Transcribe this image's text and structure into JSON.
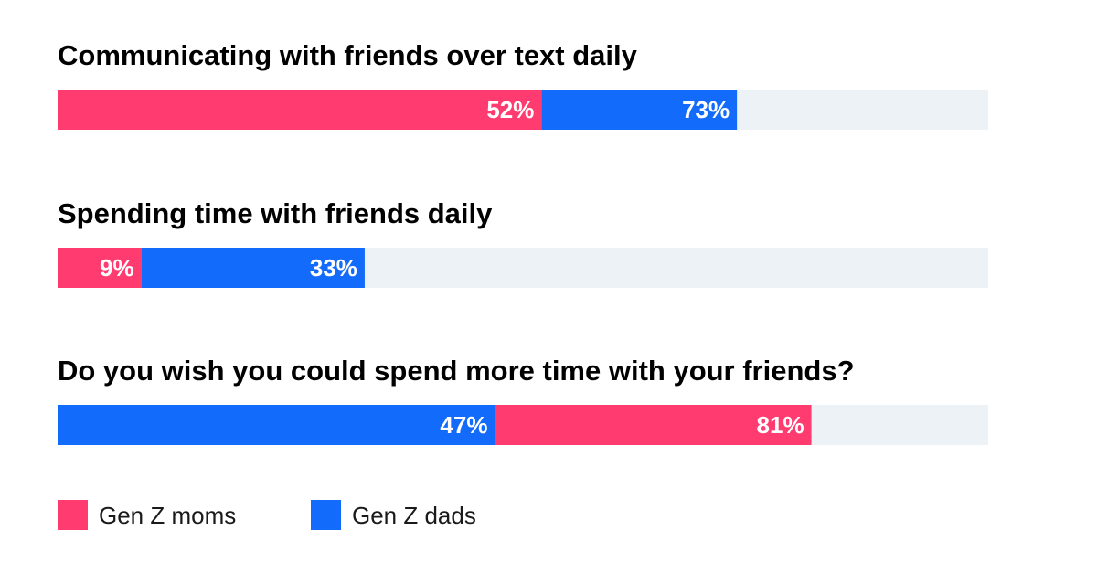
{
  "chart_data": {
    "type": "bar",
    "orientation": "horizontal",
    "layout": "overlaid-progress",
    "xlim": [
      0,
      100
    ],
    "unit": "%",
    "grid": false,
    "legend_position": "bottom-left",
    "colors": {
      "Gen Z moms": "#ff3b6f",
      "Gen Z dads": "#136bfb",
      "track": "#edf2f6"
    },
    "legend": [
      {
        "name": "Gen Z moms",
        "color": "#ff3b6f"
      },
      {
        "name": "Gen Z dads",
        "color": "#136bfb"
      }
    ],
    "questions": [
      {
        "title": "Communicating with friends over text daily",
        "segments": [
          {
            "series": "Gen Z moms",
            "value": 52,
            "label": "52%"
          },
          {
            "series": "Gen Z dads",
            "value": 73,
            "label": "73%"
          }
        ]
      },
      {
        "title": "Spending time with friends daily",
        "segments": [
          {
            "series": "Gen Z moms",
            "value": 9,
            "label": "9%"
          },
          {
            "series": "Gen Z dads",
            "value": 33,
            "label": "33%"
          }
        ]
      },
      {
        "title": "Do you wish you could spend more time with your friends?",
        "segments": [
          {
            "series": "Gen Z dads",
            "value": 47,
            "label": "47%"
          },
          {
            "series": "Gen Z moms",
            "value": 81,
            "label": "81%"
          }
        ]
      }
    ]
  }
}
